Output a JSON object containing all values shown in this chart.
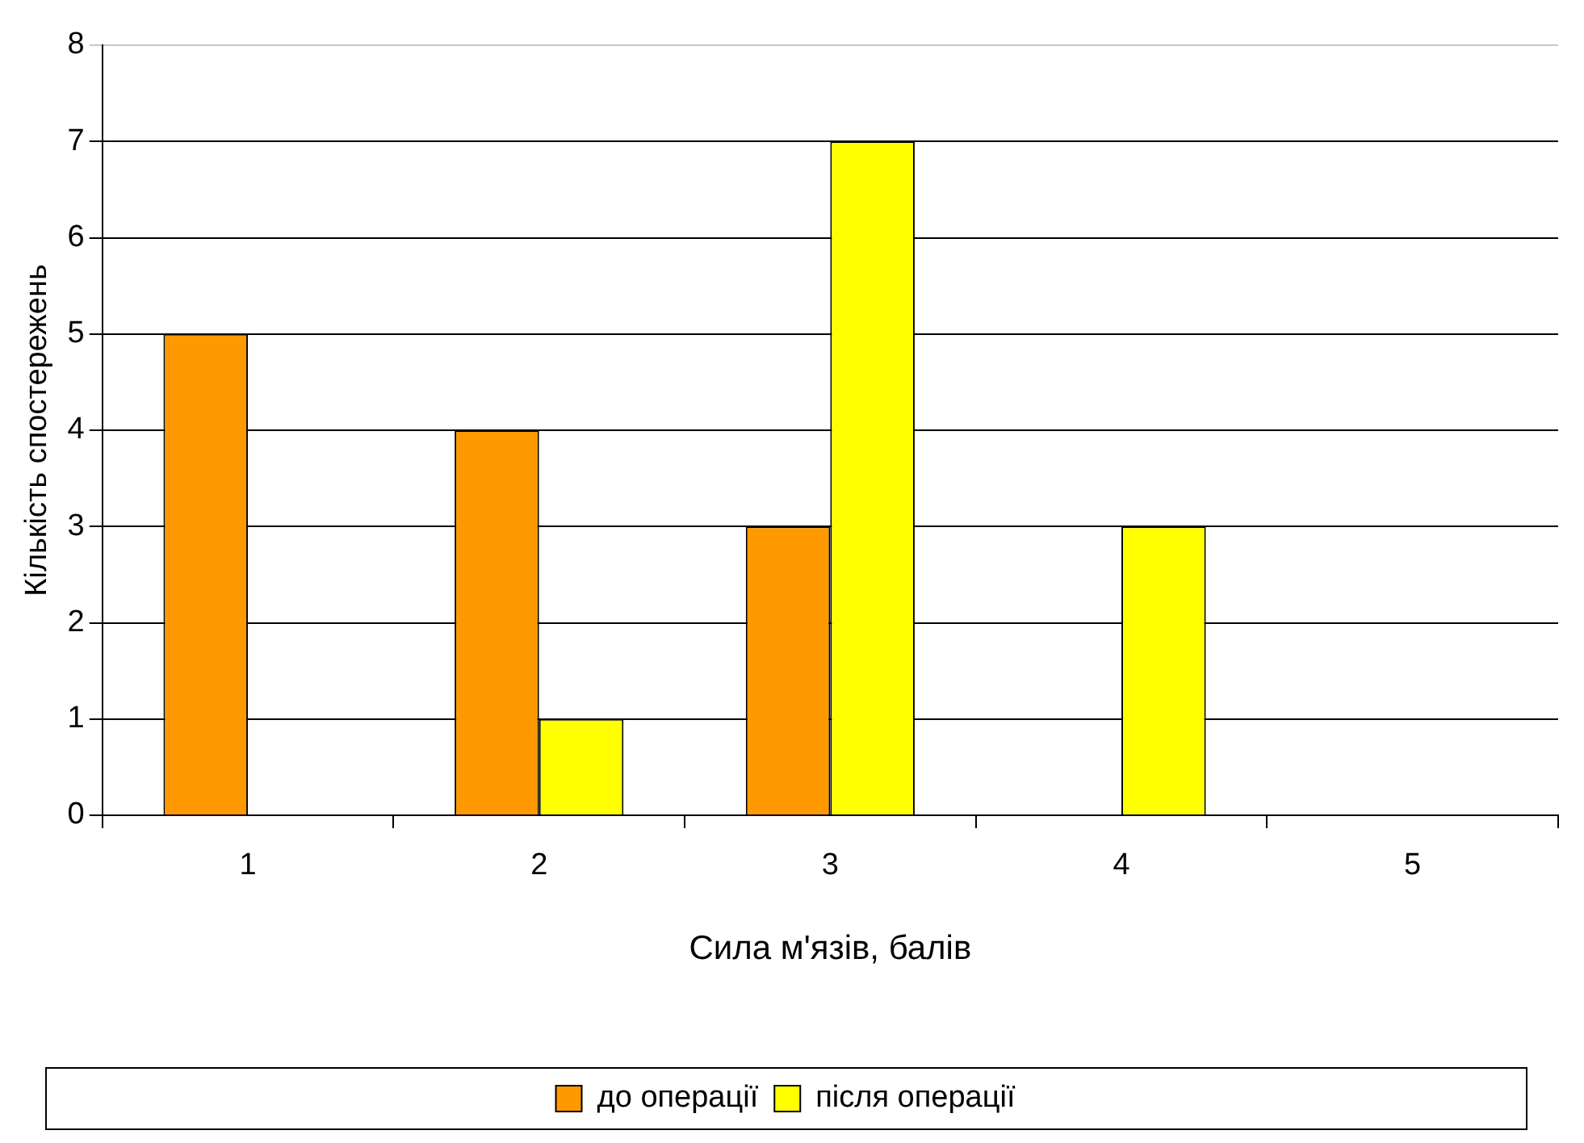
{
  "chart_data": {
    "type": "bar",
    "categories": [
      "1",
      "2",
      "3",
      "4",
      "5"
    ],
    "series": [
      {
        "name": "до операції",
        "color": "#ff9900",
        "values": [
          5,
          4,
          3,
          0,
          0
        ]
      },
      {
        "name": "після операції",
        "color": "#ffff00",
        "values": [
          0,
          1,
          7,
          3,
          0
        ]
      }
    ],
    "xlabel": "Сила м'язів, балів",
    "ylabel": "Кількість спостережень",
    "ylim": [
      0,
      8
    ],
    "yticks": [
      0,
      1,
      2,
      3,
      4,
      5,
      6,
      7,
      8
    ],
    "grid": "y",
    "legend": "bottom"
  }
}
